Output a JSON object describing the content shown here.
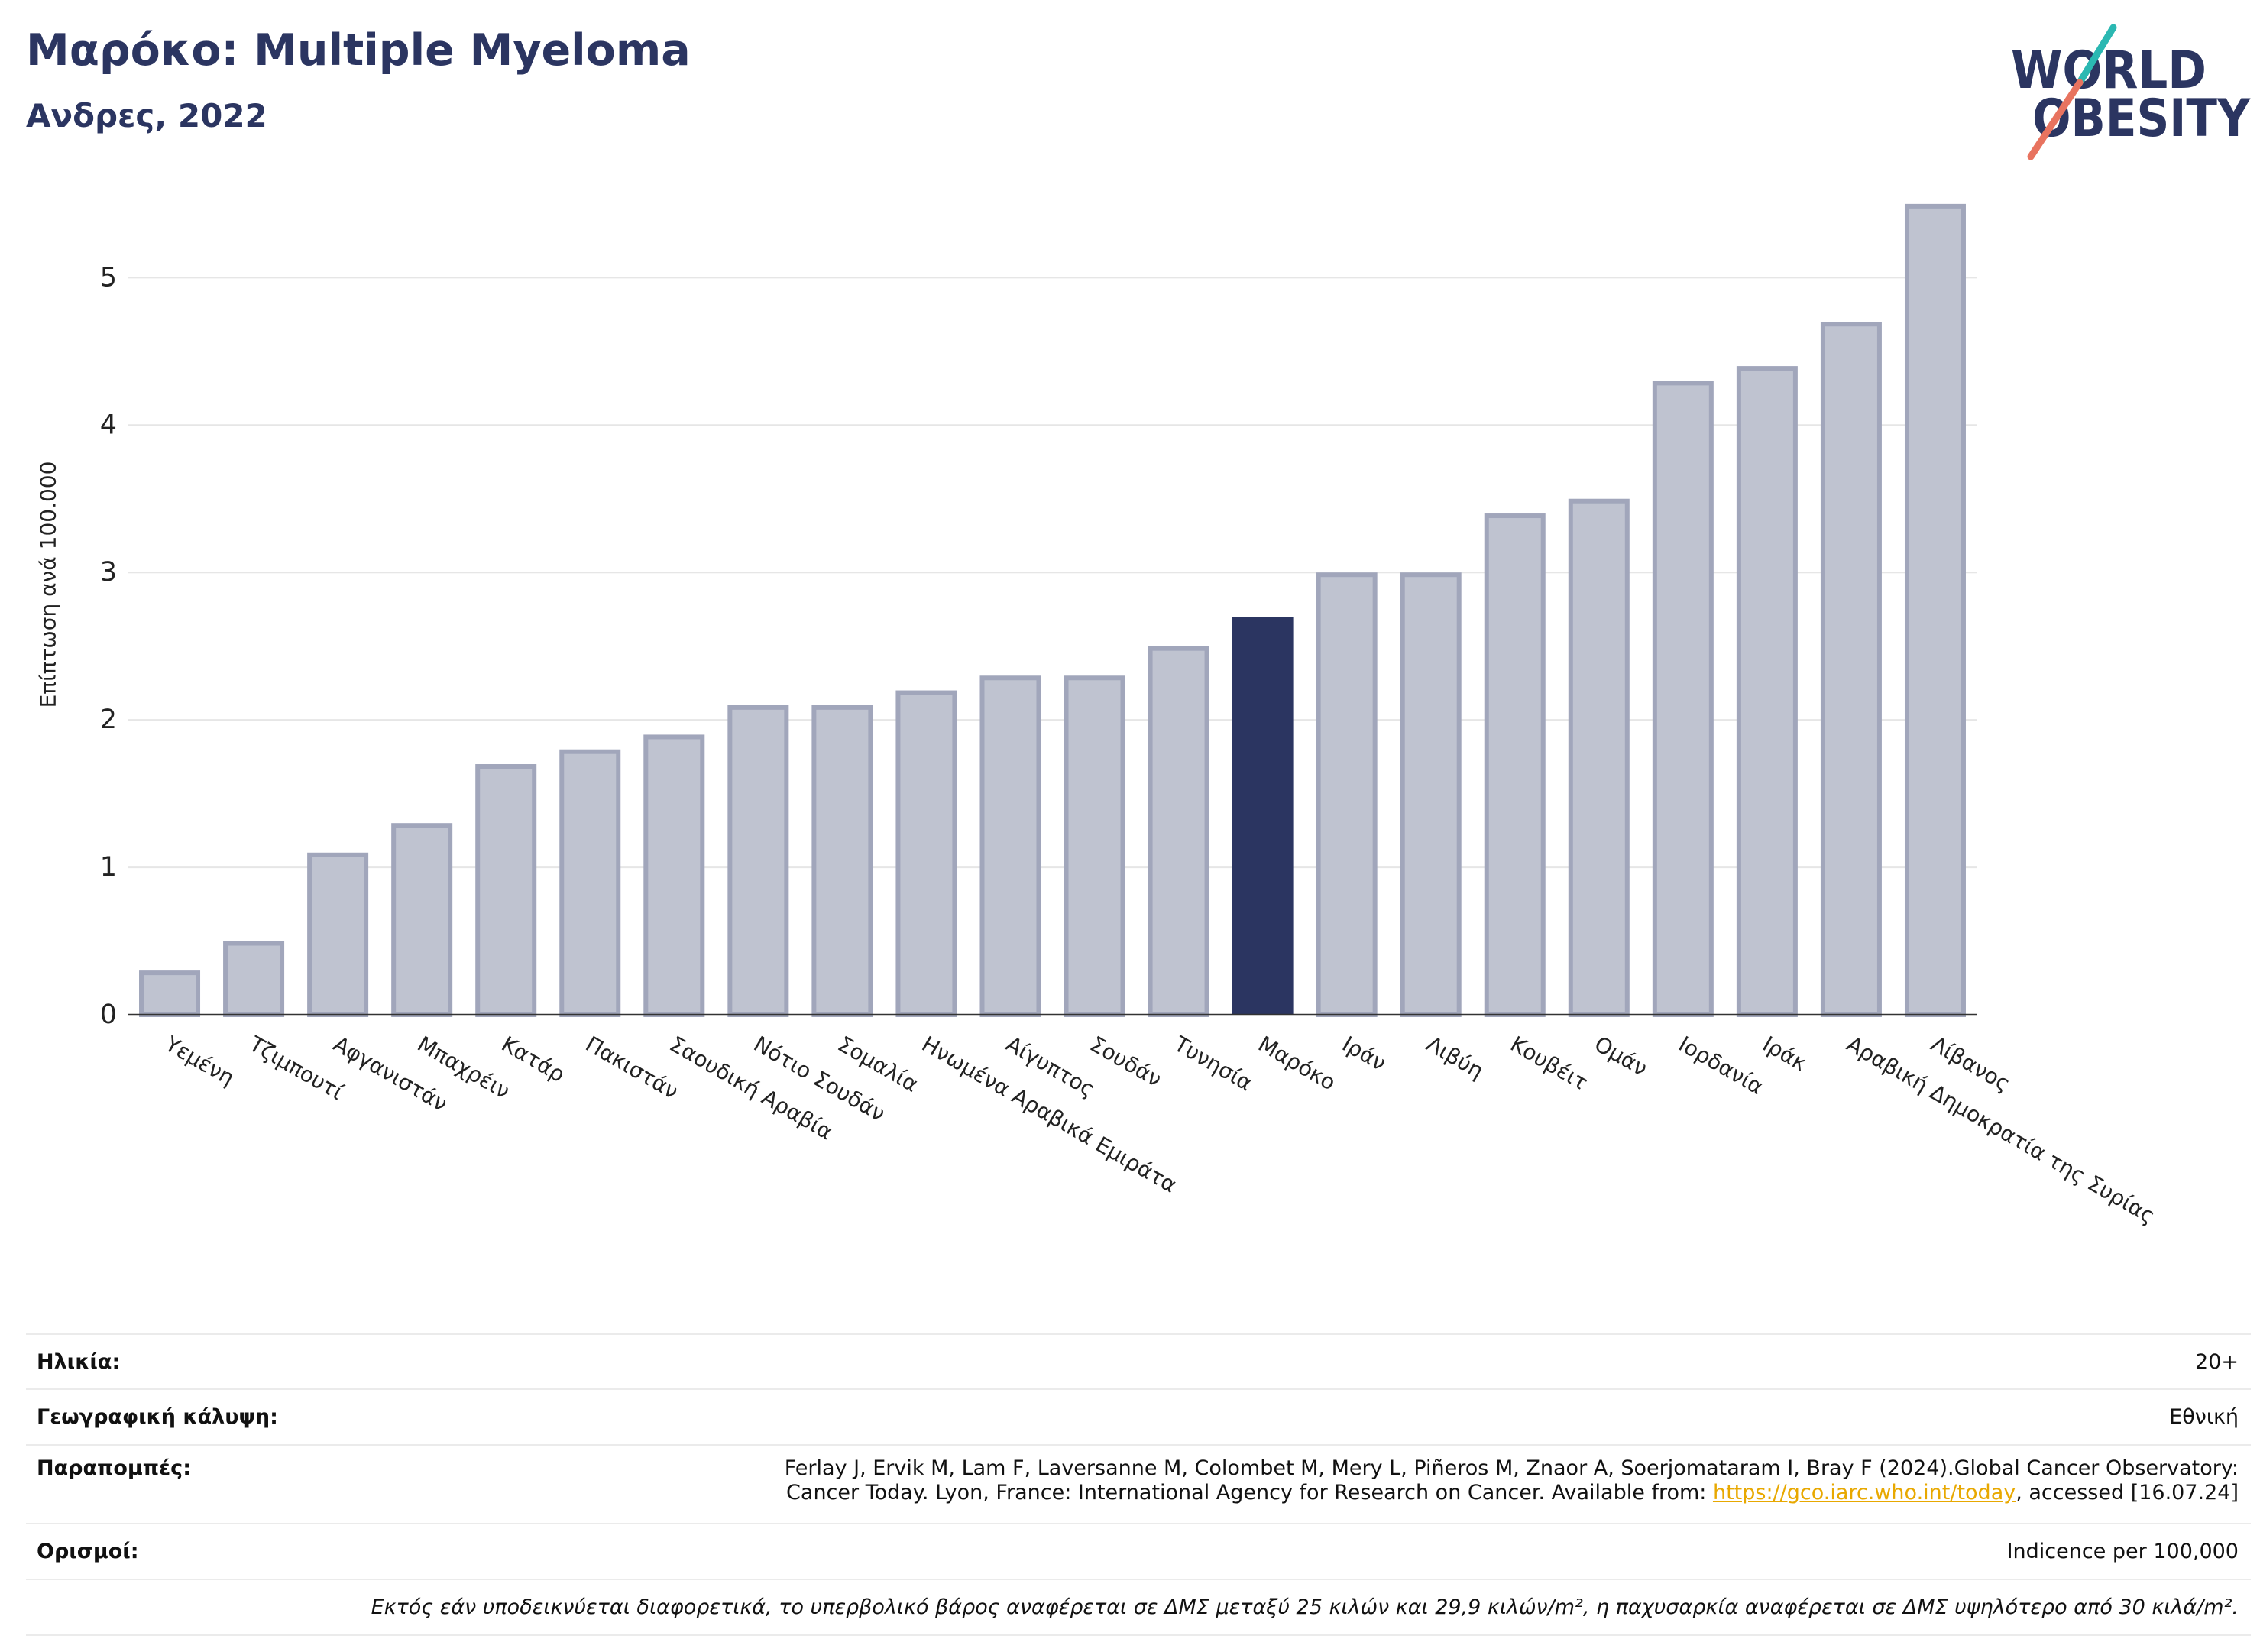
{
  "chart_data": {
    "type": "bar",
    "title": "Μαρόκο: Multiple Myeloma",
    "subtitle": "Ανδρες, 2022",
    "ylabel": "Επίπτωση ανά 100.000",
    "categories": [
      "Υεμένη",
      "Τζιμπουτί",
      "Αφγανιστάν",
      "Μπαχρέιν",
      "Κατάρ",
      "Πακιστάν",
      "Σαουδική Αραβία",
      "Νότιο Σουδάν",
      "Σομαλία",
      "Ηνωμένα Αραβικά Εμιράτα",
      "Αίγυπτος",
      "Σουδάν",
      "Τυνησία",
      "Μαρόκο",
      "Ιράν",
      "Λιβύη",
      "Κουβέιτ",
      "Ομάν",
      "Ιορδανία",
      "Ιράκ",
      "Αραβική Δημοκρατία της Συρίας",
      "Λίβανος"
    ],
    "values": [
      0.3,
      0.5,
      1.1,
      1.3,
      1.7,
      1.8,
      1.9,
      2.1,
      2.1,
      2.2,
      2.3,
      2.3,
      2.5,
      2.7,
      3.0,
      3.0,
      3.4,
      3.5,
      4.3,
      4.4,
      4.7,
      5.5
    ],
    "highlight_index": 13,
    "ylim": [
      0,
      5.8
    ],
    "yticks": [
      0,
      1,
      2,
      3,
      4,
      5
    ],
    "grid": true,
    "colors": {
      "bar_fill": "#bfc3d0",
      "bar_edge": "#a1a6bb",
      "highlight": "#2b3561",
      "grid": "#e6e6e6",
      "axis": "#333333"
    }
  },
  "logo": {
    "line1": "WORLD",
    "line2": "OBESITY",
    "text_color": "#2b3561",
    "slash_top_color": "#2bb8b2",
    "slash_bottom_color": "#e8735f"
  },
  "info": {
    "age": {
      "label": "Ηλικία:",
      "value": "20+"
    },
    "coverage": {
      "label": "Γεωγραφική κάλυψη:",
      "value": "Εθνική"
    },
    "references": {
      "label": "Παραπομπές:",
      "line1": "Ferlay J, Ervik M, Lam F, Laversanne M, Colombet M, Mery L, Piñeros M, Znaor A, Soerjomataram I, Bray F (2024).Global Cancer Observatory:",
      "line2_prefix": "Cancer Today. Lyon, France: International Agency for Research on Cancer. Available from: ",
      "link": "https://gco.iarc.who.int/today",
      "line2_suffix": ", accessed [16.07.24]"
    },
    "definitions": {
      "label": "Ορισμοί:",
      "value": "Indicence per 100,000"
    }
  },
  "footnote": "Εκτός εάν υποδεικνύεται διαφορετικά, το υπερβολικό βάρος αναφέρεται σε ΔΜΣ μεταξύ 25 κιλών και 29,9 κιλών/m², η παχυσαρκία αναφέρεται σε ΔΜΣ υψηλότερο από 30 κιλά/m².",
  "colors": {
    "title": "#2b3561",
    "link": "#e8a800",
    "rule": "#ebebeb"
  }
}
